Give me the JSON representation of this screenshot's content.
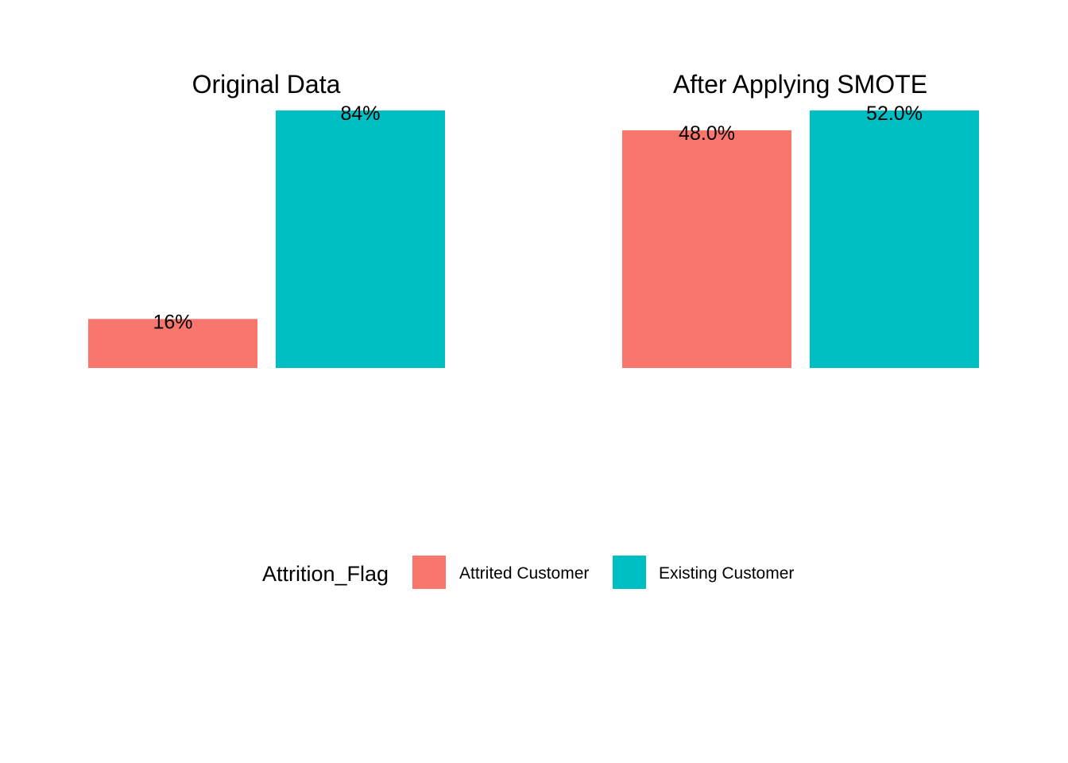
{
  "chart_data": {
    "type": "bar",
    "legend": {
      "title": "Attrition_Flag",
      "position": "bottom",
      "entries": [
        {
          "label": "Attrited Customer",
          "color": "#F8766D"
        },
        {
          "label": "Existing Customer",
          "color": "#00BFC4"
        }
      ]
    },
    "grid": false,
    "panels": [
      {
        "title": "Original Data",
        "categories": [
          "Attrited Customer",
          "Existing Customer"
        ],
        "values": [
          16,
          84
        ],
        "labels": [
          "16%",
          "84%"
        ],
        "ylim": [
          0,
          84
        ]
      },
      {
        "title": "After Applying SMOTE",
        "categories": [
          "Attrited Customer",
          "Existing Customer"
        ],
        "values": [
          48.0,
          52.0
        ],
        "labels": [
          "48.0%",
          "52.0%"
        ],
        "ylim": [
          0,
          52
        ]
      }
    ]
  }
}
